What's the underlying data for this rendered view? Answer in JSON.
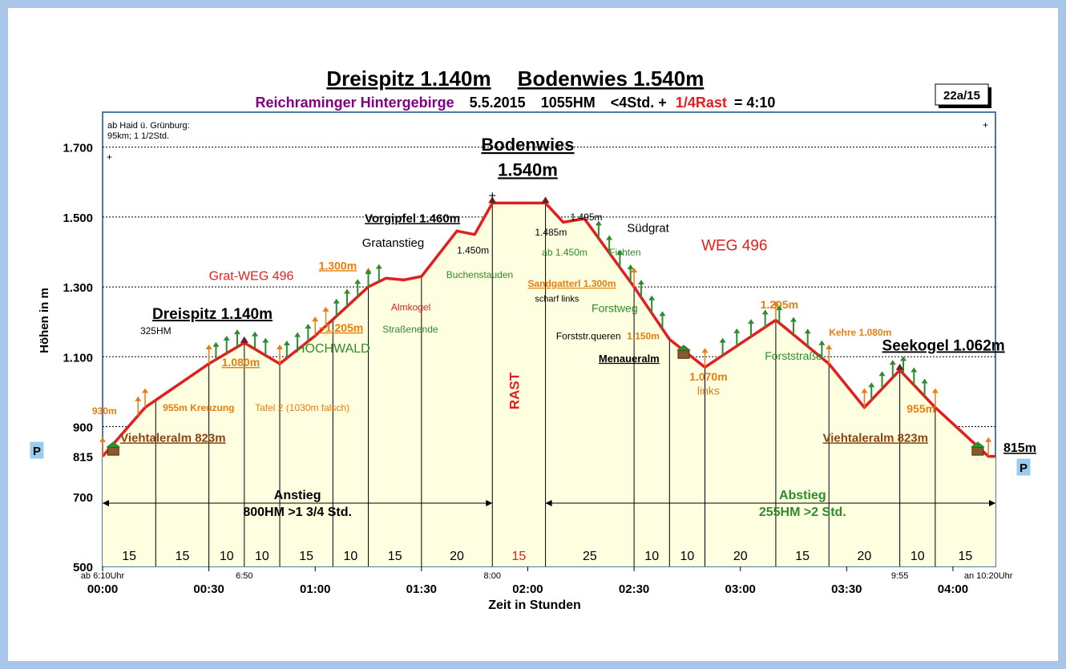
{
  "title": {
    "main_left": "Dreispitz 1.140m",
    "main_right": "Bodenwies 1.540m",
    "sub_region": "Reichraminger Hintergebirge",
    "sub_date": "5.5.2015",
    "sub_hm": "1055HM",
    "sub_time": "<4Std. +",
    "sub_rest": "1/4Rast",
    "sub_total": "= 4:10",
    "ref": "22a/15"
  },
  "corner_note_1": "ab Haid ü. Grünburg:",
  "corner_note_2": "95km; 1 1/2Std.",
  "plus_mark": "+",
  "parking": "P",
  "colors": {
    "line": "#e41e1e",
    "fill": "#fefee0",
    "orange": "#e87d10",
    "green": "#2e8b2e",
    "purple": "#800080",
    "border": "#4f7aa8"
  },
  "chart_data": {
    "type": "area",
    "ylabel": "Höhen in m",
    "xlabel": "Zeit in Stunden",
    "ylim": [
      500,
      1800
    ],
    "xlim": [
      0,
      252
    ],
    "x_unit": "minutes",
    "y_ticks": [
      {
        "v": 500,
        "label": "500"
      },
      {
        "v": 700,
        "label": "700"
      },
      {
        "v": 815,
        "label": "815"
      },
      {
        "v": 900,
        "label": "900"
      },
      {
        "v": 1100,
        "label": "1.100"
      },
      {
        "v": 1300,
        "label": "1.300"
      },
      {
        "v": 1500,
        "label": "1.500"
      },
      {
        "v": 1700,
        "label": "1.700"
      }
    ],
    "x_ticks": [
      {
        "v": 0,
        "label": "00:00"
      },
      {
        "v": 30,
        "label": "00:30"
      },
      {
        "v": 60,
        "label": "01:00"
      },
      {
        "v": 90,
        "label": "01:30"
      },
      {
        "v": 120,
        "label": "02:00"
      },
      {
        "v": 150,
        "label": "02:30"
      },
      {
        "v": 180,
        "label": "03:00"
      },
      {
        "v": 210,
        "label": "03:30"
      },
      {
        "v": 240,
        "label": "04:00"
      }
    ],
    "clock_labels": [
      {
        "x": 0,
        "label": "ab 6:10Uhr"
      },
      {
        "x": 40,
        "label": "6:50"
      },
      {
        "x": 110,
        "label": "8:00"
      },
      {
        "x": 225,
        "label": "9:55"
      },
      {
        "x": 250,
        "label": "an 10:20Uhr"
      }
    ],
    "series": [
      {
        "points": [
          [
            0,
            815
          ],
          [
            12,
            955
          ],
          [
            30,
            1080
          ],
          [
            40,
            1140
          ],
          [
            50,
            1080
          ],
          [
            60,
            1160
          ],
          [
            75,
            1300
          ],
          [
            80,
            1325
          ],
          [
            85,
            1320
          ],
          [
            90,
            1330
          ],
          [
            100,
            1460
          ],
          [
            105,
            1450
          ],
          [
            110,
            1540
          ],
          [
            125,
            1540
          ],
          [
            130,
            1485
          ],
          [
            136,
            1495
          ],
          [
            150,
            1300
          ],
          [
            160,
            1150
          ],
          [
            170,
            1070
          ],
          [
            190,
            1205
          ],
          [
            205,
            1080
          ],
          [
            215,
            955
          ],
          [
            225,
            1062
          ],
          [
            235,
            955
          ],
          [
            250,
            815
          ],
          [
            252,
            815
          ]
        ]
      }
    ],
    "segments": [
      {
        "from": 0,
        "to": 15,
        "label": "15"
      },
      {
        "from": 15,
        "to": 30,
        "label": "15"
      },
      {
        "from": 30,
        "to": 40,
        "label": "10"
      },
      {
        "from": 40,
        "to": 50,
        "label": "10"
      },
      {
        "from": 50,
        "to": 65,
        "label": "15"
      },
      {
        "from": 65,
        "to": 75,
        "label": "10"
      },
      {
        "from": 75,
        "to": 90,
        "label": "15"
      },
      {
        "from": 90,
        "to": 110,
        "label": "20"
      },
      {
        "from": 110,
        "to": 125,
        "label": "15",
        "rest": true
      },
      {
        "from": 125,
        "to": 150,
        "label": "25"
      },
      {
        "from": 150,
        "to": 160,
        "label": "10"
      },
      {
        "from": 160,
        "to": 170,
        "label": "10"
      },
      {
        "from": 170,
        "to": 190,
        "label": "20"
      },
      {
        "from": 190,
        "to": 205,
        "label": "15"
      },
      {
        "from": 205,
        "to": 225,
        "label": "20"
      },
      {
        "from": 225,
        "to": 235,
        "label": "10"
      },
      {
        "from": 235,
        "to": 252,
        "label": "15"
      }
    ],
    "ascent": {
      "title": "Anstieg",
      "detail": "800HM  >1 3/4 Std."
    },
    "descent": {
      "title": "Abstieg",
      "detail": "255HM   >2 Std."
    },
    "rest_label": "RAST",
    "annotations": [
      {
        "x": 31,
        "y": 1208,
        "text": "Dreispitz 1.140m",
        "color": "#000000",
        "size": 19,
        "bold": true,
        "underline": true,
        "anchor": "middle"
      },
      {
        "x": 15,
        "y": 1165,
        "text": "325HM",
        "color": "#000000",
        "size": 12,
        "anchor": "middle"
      },
      {
        "x": 5,
        "y": 857,
        "text": "Viehtaleralm 823m",
        "color": "#8b4513",
        "size": 15,
        "bold": true,
        "underline": true,
        "anchor": "start"
      },
      {
        "x": 4,
        "y": 936,
        "text": "930m",
        "color": "#e87d10",
        "size": 12,
        "bold": true,
        "anchor": "end"
      },
      {
        "x": 17,
        "y": 945,
        "text": "955m Kreuzung",
        "color": "#e87d10",
        "size": 12,
        "bold": true,
        "anchor": "start"
      },
      {
        "x": 43,
        "y": 945,
        "text": "Tafel 2 (1030m falsch)",
        "color": "#e87d10",
        "size": 12,
        "anchor": "start"
      },
      {
        "x": 39,
        "y": 1073,
        "text": "1.080m",
        "color": "#e87d10",
        "size": 14,
        "bold": true,
        "underline": true,
        "anchor": "middle"
      },
      {
        "x": 65,
        "y": 1112,
        "text": "HOCHWALD",
        "color": "#2e8b2e",
        "size": 16,
        "anchor": "middle"
      },
      {
        "x": 61,
        "y": 1172,
        "text": "~1.205m",
        "color": "#e87d10",
        "size": 14,
        "bold": true,
        "underline": true,
        "anchor": "start"
      },
      {
        "x": 79,
        "y": 1170,
        "text": "Straßenende",
        "color": "#2e8b2e",
        "size": 12,
        "anchor": "start"
      },
      {
        "x": 30,
        "y": 1320,
        "text": "Grat-WEG 496",
        "color": "#e41e1e",
        "size": 16,
        "anchor": "start"
      },
      {
        "x": 61,
        "y": 1350,
        "text": "1.300m",
        "color": "#e87d10",
        "size": 14,
        "bold": true,
        "underline": true,
        "anchor": "start"
      },
      {
        "x": 87,
        "y": 1232,
        "text": "Almkogel",
        "color": "#e41e1e",
        "size": 12,
        "anchor": "middle"
      },
      {
        "x": 82,
        "y": 1415,
        "text": "Gratanstieg",
        "color": "#000000",
        "size": 15,
        "anchor": "middle"
      },
      {
        "x": 74,
        "y": 1485,
        "text": "Vorgipfel 1.460m",
        "color": "#000000",
        "size": 15,
        "bold": true,
        "underline": true,
        "anchor": "start"
      },
      {
        "x": 100,
        "y": 1395,
        "text": "1.450m",
        "color": "#000000",
        "size": 12,
        "anchor": "start"
      },
      {
        "x": 97,
        "y": 1325,
        "text": "Buchenstauden",
        "color": "#2e8b2e",
        "size": 12,
        "anchor": "start"
      },
      {
        "x": 120,
        "y": 1690,
        "text": "Bodenwies",
        "color": "#000000",
        "size": 22,
        "bold": true,
        "underline": true,
        "anchor": "middle"
      },
      {
        "x": 120,
        "y": 1618,
        "text": "1.540m",
        "color": "#000000",
        "size": 22,
        "bold": true,
        "underline": true,
        "anchor": "middle"
      },
      {
        "x": 132,
        "y": 1490,
        "text": "1.495m",
        "color": "#000000",
        "size": 12,
        "anchor": "start"
      },
      {
        "x": 122,
        "y": 1447,
        "text": "1.485m",
        "color": "#000000",
        "size": 12,
        "anchor": "start"
      },
      {
        "x": 124,
        "y": 1390,
        "text": "ab 1.450m",
        "color": "#2e8b2e",
        "size": 12,
        "anchor": "start"
      },
      {
        "x": 143,
        "y": 1390,
        "text": "Fichten",
        "color": "#2e8b2e",
        "size": 12,
        "anchor": "start"
      },
      {
        "x": 148,
        "y": 1457,
        "text": "Südgrat",
        "color": "#000000",
        "size": 15,
        "anchor": "start"
      },
      {
        "x": 169,
        "y": 1405,
        "text": "WEG 496",
        "color": "#e41e1e",
        "size": 19,
        "anchor": "start"
      },
      {
        "x": 120,
        "y": 1300,
        "text": "Sandgatterl 1.300m",
        "color": "#e87d10",
        "size": 12,
        "bold": true,
        "underline": true,
        "anchor": "start"
      },
      {
        "x": 122,
        "y": 1258,
        "text": "scharf links",
        "color": "#000000",
        "size": 11,
        "anchor": "start"
      },
      {
        "x": 138,
        "y": 1228,
        "text": "Forstweg",
        "color": "#2e8b2e",
        "size": 14,
        "anchor": "start"
      },
      {
        "x": 128,
        "y": 1150,
        "text": "Forststr.queren",
        "color": "#000000",
        "size": 12,
        "anchor": "start"
      },
      {
        "x": 148,
        "y": 1150,
        "text": "1.150m",
        "color": "#e87d10",
        "size": 12,
        "bold": true,
        "anchor": "start"
      },
      {
        "x": 140,
        "y": 1085,
        "text": "Menaueralm",
        "color": "#000000",
        "size": 13,
        "bold": true,
        "underline": true,
        "anchor": "start"
      },
      {
        "x": 171,
        "y": 1032,
        "text": "1.070m",
        "color": "#e87d10",
        "size": 14,
        "bold": true,
        "anchor": "middle"
      },
      {
        "x": 171,
        "y": 992,
        "text": "links",
        "color": "#e87d10",
        "size": 14,
        "anchor": "middle"
      },
      {
        "x": 191,
        "y": 1238,
        "text": "1.205m",
        "color": "#e87d10",
        "size": 14,
        "bold": true,
        "anchor": "middle"
      },
      {
        "x": 195,
        "y": 1092,
        "text": "Forststraße",
        "color": "#2e8b2e",
        "size": 14,
        "anchor": "middle"
      },
      {
        "x": 205,
        "y": 1160,
        "text": "Kehre 1.080m",
        "color": "#e87d10",
        "size": 12,
        "bold": true,
        "anchor": "start"
      },
      {
        "x": 220,
        "y": 1118,
        "text": "Seekogel 1.062m",
        "color": "#000000",
        "size": 19,
        "bold": true,
        "underline": true,
        "anchor": "start"
      },
      {
        "x": 231,
        "y": 940,
        "text": "955m",
        "color": "#e87d10",
        "size": 14,
        "bold": true,
        "anchor": "middle"
      },
      {
        "x": 233,
        "y": 857,
        "text": "Viehtaleralm 823m",
        "color": "#8b4513",
        "size": 15,
        "bold": true,
        "underline": true,
        "anchor": "end"
      }
    ],
    "end_label": "815m"
  }
}
